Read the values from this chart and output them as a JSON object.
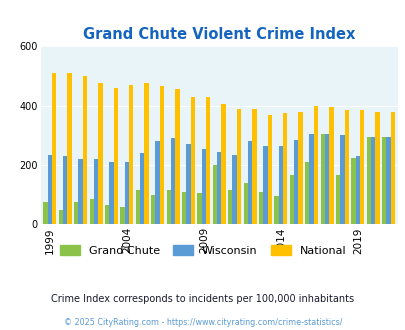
{
  "title": "Grand Chute Violent Crime Index",
  "years": [
    1999,
    2000,
    2001,
    2002,
    2003,
    2004,
    2005,
    2006,
    2007,
    2008,
    2009,
    2010,
    2011,
    2012,
    2013,
    2014,
    2015,
    2016,
    2017,
    2018,
    2019,
    2020,
    2021
  ],
  "grand_chute": [
    75,
    50,
    75,
    85,
    65,
    60,
    115,
    100,
    115,
    110,
    105,
    200,
    115,
    140,
    110,
    95,
    165,
    210,
    305,
    165,
    225,
    295,
    295
  ],
  "wisconsin": [
    235,
    230,
    220,
    220,
    210,
    210,
    240,
    280,
    290,
    270,
    255,
    245,
    235,
    280,
    265,
    265,
    285,
    305,
    305,
    300,
    230,
    295,
    295
  ],
  "national": [
    510,
    510,
    500,
    475,
    460,
    470,
    475,
    465,
    455,
    430,
    430,
    405,
    390,
    390,
    370,
    375,
    380,
    400,
    395,
    385,
    385,
    380,
    380
  ],
  "bar_colors": {
    "grand_chute": "#8bc34a",
    "wisconsin": "#5b9bd5",
    "national": "#ffc000"
  },
  "background_color": "#e8f4f8",
  "ylim": [
    0,
    600
  ],
  "yticks": [
    0,
    200,
    400,
    600
  ],
  "xlabel_years": [
    1999,
    2004,
    2009,
    2014,
    2019
  ],
  "legend_labels": [
    "Grand Chute",
    "Wisconsin",
    "National"
  ],
  "subtitle": "Crime Index corresponds to incidents per 100,000 inhabitants",
  "footer": "© 2025 CityRating.com - https://www.cityrating.com/crime-statistics/",
  "title_color": "#1565c0",
  "subtitle_color": "#1a1a2e",
  "footer_color": "#5b9bd5"
}
